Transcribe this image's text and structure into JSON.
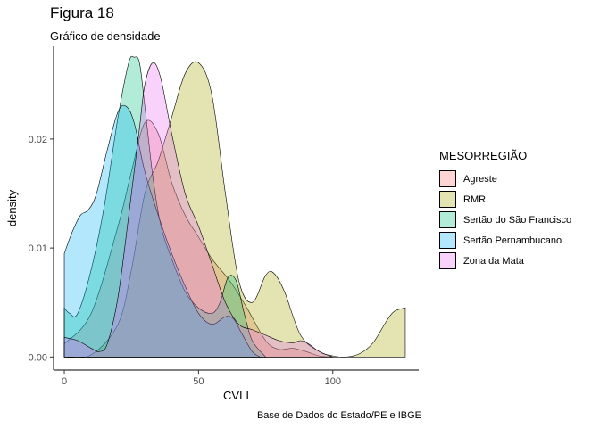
{
  "chart_data": {
    "type": "area",
    "title": "Figura 18",
    "subtitle": "Gráfico de densidade",
    "caption": "Base de Dados do Estado/PE e IBGE",
    "xlabel": "CVLI",
    "ylabel": "density",
    "xlim": [
      -4,
      132
    ],
    "ylim": [
      -0.0012,
      0.0285
    ],
    "xticks": [
      0,
      50,
      100
    ],
    "yticks": [
      0.0,
      0.01,
      0.02
    ],
    "ytick_labels": [
      "0.00",
      "0.01",
      "0.02"
    ],
    "grid": false,
    "legend_title": "MESORREGIÃO",
    "legend_position": "right",
    "series": [
      {
        "name": "Agreste",
        "color": "#F8766D",
        "x": [
          0,
          10,
          20,
          25,
          30,
          35,
          40,
          45,
          50,
          55,
          60,
          63,
          68,
          75,
          80,
          85,
          90,
          95,
          100
        ],
        "y": [
          0.0012,
          0.004,
          0.012,
          0.017,
          0.0215,
          0.0205,
          0.016,
          0.013,
          0.011,
          0.009,
          0.0075,
          0.0065,
          0.0045,
          0.0015,
          0.0007,
          0.0008,
          0.0005,
          0.0001,
          0.0
        ]
      },
      {
        "name": "RMR",
        "color": "#A3A500",
        "x": [
          0,
          10,
          20,
          25,
          30,
          35,
          40,
          45,
          50,
          55,
          60,
          65,
          70,
          75,
          78,
          82,
          88,
          95,
          100,
          105,
          110,
          115,
          120,
          123,
          127
        ],
        "y": [
          0.0,
          0.0002,
          0.003,
          0.008,
          0.015,
          0.018,
          0.022,
          0.026,
          0.027,
          0.024,
          0.015,
          0.007,
          0.005,
          0.0075,
          0.0077,
          0.006,
          0.002,
          0.0005,
          0.0001,
          0.0,
          0.0003,
          0.0013,
          0.0033,
          0.0042,
          0.0045
        ]
      },
      {
        "name": "Sertão do São Francisco",
        "color": "#00BF7D",
        "x": [
          0,
          2,
          5,
          10,
          15,
          20,
          24,
          26,
          28,
          30,
          33,
          36,
          40,
          45,
          50,
          55,
          58,
          61,
          64,
          67,
          70,
          75
        ],
        "y": [
          0.0045,
          0.004,
          0.004,
          0.008,
          0.014,
          0.022,
          0.027,
          0.0275,
          0.027,
          0.023,
          0.0165,
          0.012,
          0.009,
          0.006,
          0.0045,
          0.004,
          0.005,
          0.0073,
          0.007,
          0.004,
          0.0015,
          0.0
        ]
      },
      {
        "name": "Sertão Pernambucano",
        "color": "#00B0F6",
        "x": [
          0,
          3,
          6,
          9,
          12,
          16,
          20,
          23,
          26,
          30,
          35,
          40,
          45,
          50,
          55,
          60,
          63,
          66,
          70,
          73
        ],
        "y": [
          0.0095,
          0.0115,
          0.013,
          0.0135,
          0.015,
          0.019,
          0.0225,
          0.023,
          0.0215,
          0.017,
          0.013,
          0.0095,
          0.0065,
          0.004,
          0.003,
          0.0037,
          0.0035,
          0.0022,
          0.0005,
          0.0
        ]
      },
      {
        "name": "Zona da Mata",
        "color": "#E76BF3",
        "x": [
          0,
          5,
          10,
          13,
          16,
          20,
          24,
          28,
          30,
          33,
          36,
          40,
          45,
          50,
          55,
          60,
          65,
          70,
          75,
          80,
          85,
          88,
          91,
          95,
          100
        ],
        "y": [
          0.0018,
          0.0015,
          0.0008,
          0.0005,
          0.0012,
          0.0055,
          0.013,
          0.021,
          0.025,
          0.027,
          0.0255,
          0.0205,
          0.015,
          0.012,
          0.0085,
          0.005,
          0.003,
          0.0025,
          0.002,
          0.0015,
          0.0013,
          0.0015,
          0.0012,
          0.0005,
          0.0
        ]
      }
    ]
  }
}
